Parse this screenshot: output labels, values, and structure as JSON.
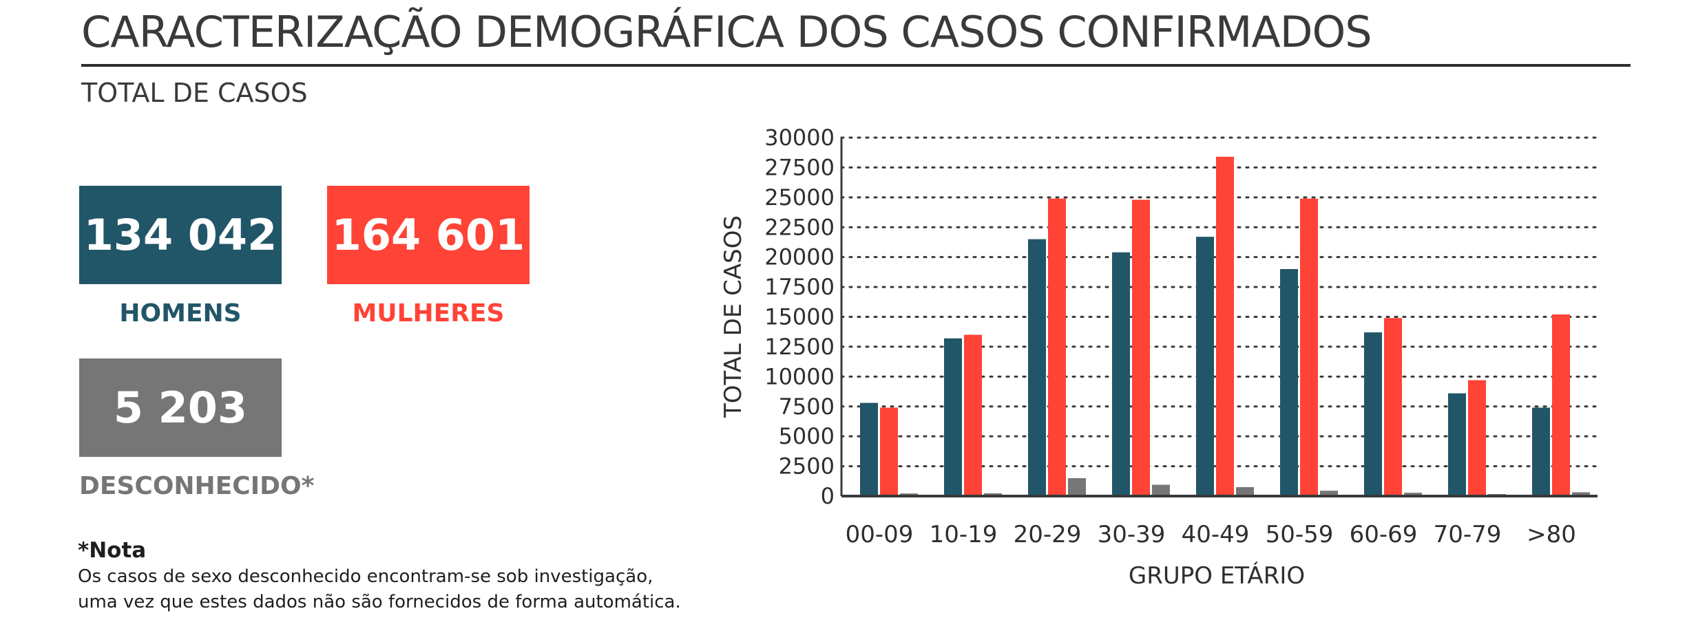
{
  "header": {
    "title": "CARACTERIZAÇÃO DEMOGRÁFICA DOS CASOS CONFIRMADOS",
    "subtitle": "TOTAL DE CASOS"
  },
  "totals": {
    "men": {
      "value": "134 042",
      "label": "HOMENS"
    },
    "women": {
      "value": "164 601",
      "label": "MULHERES"
    },
    "unknown": {
      "value": "5 203",
      "label": "DESCONHECIDO*"
    }
  },
  "note": {
    "title": "*Nota",
    "line1": "Os casos de sexo desconhecido encontram-se sob investigação,",
    "line2": "uma vez que estes dados não são fornecidos de forma automática."
  },
  "colors": {
    "men": "#215668",
    "women": "#ff4336",
    "unknown": "#767676",
    "text": "#3a3a3a"
  },
  "chart_data": {
    "type": "bar",
    "xlabel": "GRUPO ETÁRIO",
    "ylabel": "TOTAL DE CASOS",
    "ylim": [
      0,
      30000
    ],
    "yticks": [
      "0",
      "2500",
      "5000",
      "7500",
      "10000",
      "12500",
      "15000",
      "17500",
      "20000",
      "22500",
      "25000",
      "27500",
      "30000"
    ],
    "grid": "horizontal-dotted",
    "legend": "none",
    "categories": [
      "00-09",
      "10-19",
      "20-29",
      "30-39",
      "40-49",
      "50-59",
      "60-69",
      "70-79",
      ">80"
    ],
    "series": [
      {
        "key": "men",
        "values": [
          7800,
          13200,
          21500,
          20400,
          21700,
          19000,
          13700,
          8600,
          7400
        ]
      },
      {
        "key": "women",
        "values": [
          7400,
          13500,
          24900,
          24800,
          28400,
          24900,
          14900,
          9700,
          15200
        ]
      },
      {
        "key": "unknown",
        "values": [
          220,
          230,
          1500,
          950,
          750,
          450,
          280,
          170,
          320
        ]
      }
    ]
  }
}
